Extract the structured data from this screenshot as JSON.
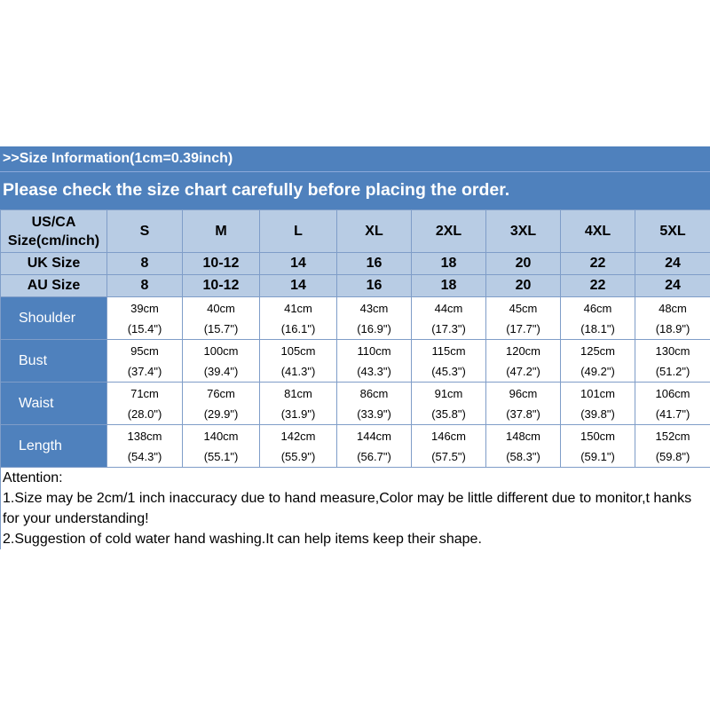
{
  "banner": {
    "line1": ">>Size Information(1cm=0.39inch)",
    "line2": "Please check the size chart carefully before placing the order."
  },
  "table": {
    "us_label_line1": "US/CA",
    "us_label_line2": "Size(cm/inch)",
    "us_sizes": [
      "S",
      "M",
      "L",
      "XL",
      "2XL",
      "3XL",
      "4XL",
      "5XL"
    ],
    "uk_label": "UK Size",
    "uk_sizes": [
      "8",
      "10-12",
      "14",
      "16",
      "18",
      "20",
      "22",
      "24"
    ],
    "au_label": "AU Size",
    "au_sizes": [
      "8",
      "10-12",
      "14",
      "16",
      "18",
      "20",
      "22",
      "24"
    ],
    "rows": [
      {
        "label": "Shoulder",
        "cm": [
          "39cm",
          "40cm",
          "41cm",
          "43cm",
          "44cm",
          "45cm",
          "46cm",
          "48cm"
        ],
        "inch": [
          "(15.4\")",
          "(15.7\")",
          "(16.1\")",
          "(16.9\")",
          "(17.3\")",
          "(17.7\")",
          "(18.1\")",
          "(18.9\")"
        ]
      },
      {
        "label": "Bust",
        "cm": [
          "95cm",
          "100cm",
          "105cm",
          "110cm",
          "115cm",
          "120cm",
          "125cm",
          "130cm"
        ],
        "inch": [
          "(37.4\")",
          "(39.4\")",
          "(41.3\")",
          "(43.3\")",
          "(45.3\")",
          "(47.2\")",
          "(49.2\")",
          "(51.2\")"
        ]
      },
      {
        "label": "Waist",
        "cm": [
          "71cm",
          "76cm",
          "81cm",
          "86cm",
          "91cm",
          "96cm",
          "101cm",
          "106cm"
        ],
        "inch": [
          "(28.0\")",
          "(29.9\")",
          "(31.9\")",
          "(33.9\")",
          "(35.8\")",
          "(37.8\")",
          "(39.8\")",
          "(41.7\")"
        ]
      },
      {
        "label": "Length",
        "cm": [
          "138cm",
          "140cm",
          "142cm",
          "144cm",
          "146cm",
          "148cm",
          "150cm",
          "152cm"
        ],
        "inch": [
          "(54.3\")",
          "(55.1\")",
          "(55.9\")",
          "(56.7\")",
          "(57.5\")",
          "(58.3\")",
          "(59.1\")",
          "(59.8\")"
        ]
      }
    ]
  },
  "notes": {
    "title": "Attention:",
    "items": [
      "1.Size may be 2cm/1 inch inaccuracy due to hand measure,Color may be little different due to monitor,t hanks for your understanding!",
      "2.Suggestion of cold water hand washing.It can help items keep their shape."
    ]
  },
  "colors": {
    "banner": "#4f81bd",
    "header": "#b8cce4",
    "grid": "#7f9dc8"
  }
}
